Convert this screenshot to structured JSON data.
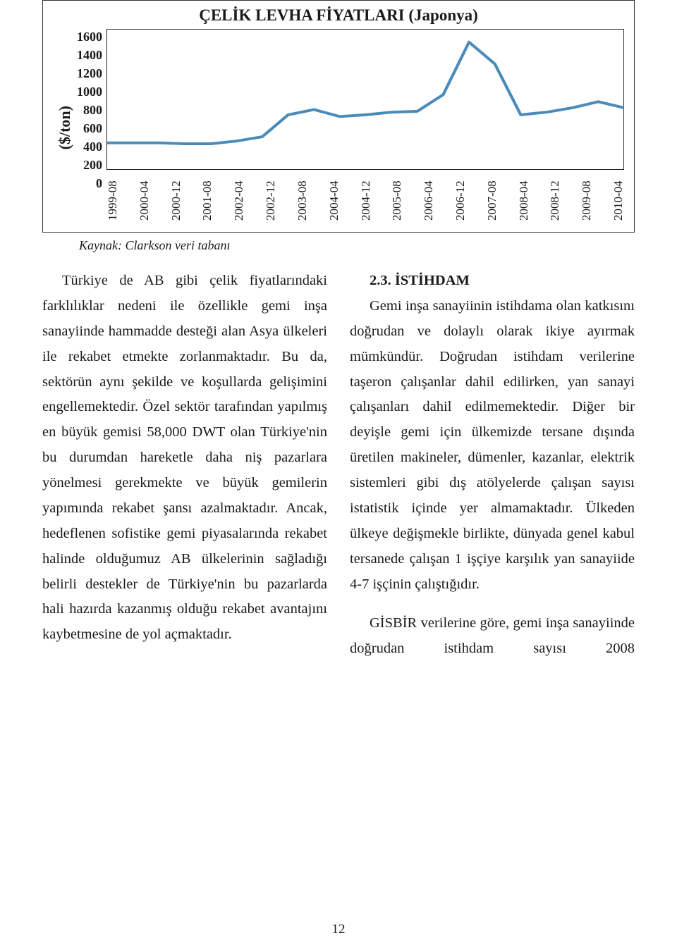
{
  "chart": {
    "title": "ÇELİK LEVHA FİYATLARI (Japonya)",
    "ylabel": "($/ton)",
    "type": "line",
    "ylim": [
      0,
      1600
    ],
    "ytick_step": 200,
    "yticks": [
      "1600",
      "1400",
      "1200",
      "1000",
      "800",
      "600",
      "400",
      "200",
      "0"
    ],
    "xticks": [
      "1999-08",
      "2000-04",
      "2000-12",
      "2001-08",
      "2002-04",
      "2002-12",
      "2003-08",
      "2004-04",
      "2004-12",
      "2005-08",
      "2006-04",
      "2006-12",
      "2007-08",
      "2008-04",
      "2008-12",
      "2009-08",
      "2010-04"
    ],
    "values": [
      300,
      300,
      300,
      290,
      290,
      320,
      370,
      620,
      680,
      600,
      620,
      650,
      660,
      850,
      1450,
      1200,
      620,
      650,
      700,
      770,
      700
    ],
    "line_color": "#4b8bb9",
    "line_width": 4,
    "background_color": "#ffffff",
    "axis_color": "#222222",
    "frame_color": "#333333",
    "font_family": "serif",
    "title_fontsize": 23,
    "tick_fontsize": 18
  },
  "caption": "Kaynak: Clarkson veri tabanı",
  "left_col": {
    "p1": "Türkiye de AB gibi çelik fiyatlarındaki farklılıklar nedeni ile özellikle gemi inşa sanayiinde hammadde desteği alan Asya ülkeleri ile rekabet etmekte zorlanmaktadır. Bu da, sektörün aynı şekilde ve koşullarda gelişimini engellemektedir. Özel sektör tarafından yapılmış en büyük gemisi 58,000 DWT olan Türkiye'nin bu durumdan hareketle daha niş pazarlara yönelmesi gerekmekte ve büyük gemilerin yapımında rekabet şansı azalmaktadır. Ancak, hedeflenen sofistike gemi piyasalarında rekabet halinde olduğumuz AB ülkelerinin sağladığı belirli destekler de Türkiye'nin bu pazarlarda hali hazırda kazanmış olduğu rekabet avantajını kaybetmesine de yol açmaktadır."
  },
  "right_col": {
    "heading": "2.3. İSTİHDAM",
    "p1": "Gemi inşa sanayiinin istihdama olan katkısını doğrudan ve dolaylı olarak ikiye ayırmak mümkündür. Doğrudan istihdam verilerine taşeron çalışanlar dahil edilirken, yan sanayi çalışanları dahil edilmemektedir. Diğer bir deyişle gemi için ülkemizde tersane dışında üretilen makineler, dümenler, kazanlar, elektrik sistemleri gibi dış atölyelerde çalışan sayısı istatistik içinde yer almamaktadır. Ülkeden ülkeye değişmekle birlikte, dünyada genel kabul tersanede çalışan 1 işçiye karşılık yan sanayiide 4-7 işçinin çalıştığıdır.",
    "p2": "GİSBİR verilerine göre, gemi inşa sanayiinde doğrudan istihdam sayısı 2008"
  },
  "page_number": "12"
}
